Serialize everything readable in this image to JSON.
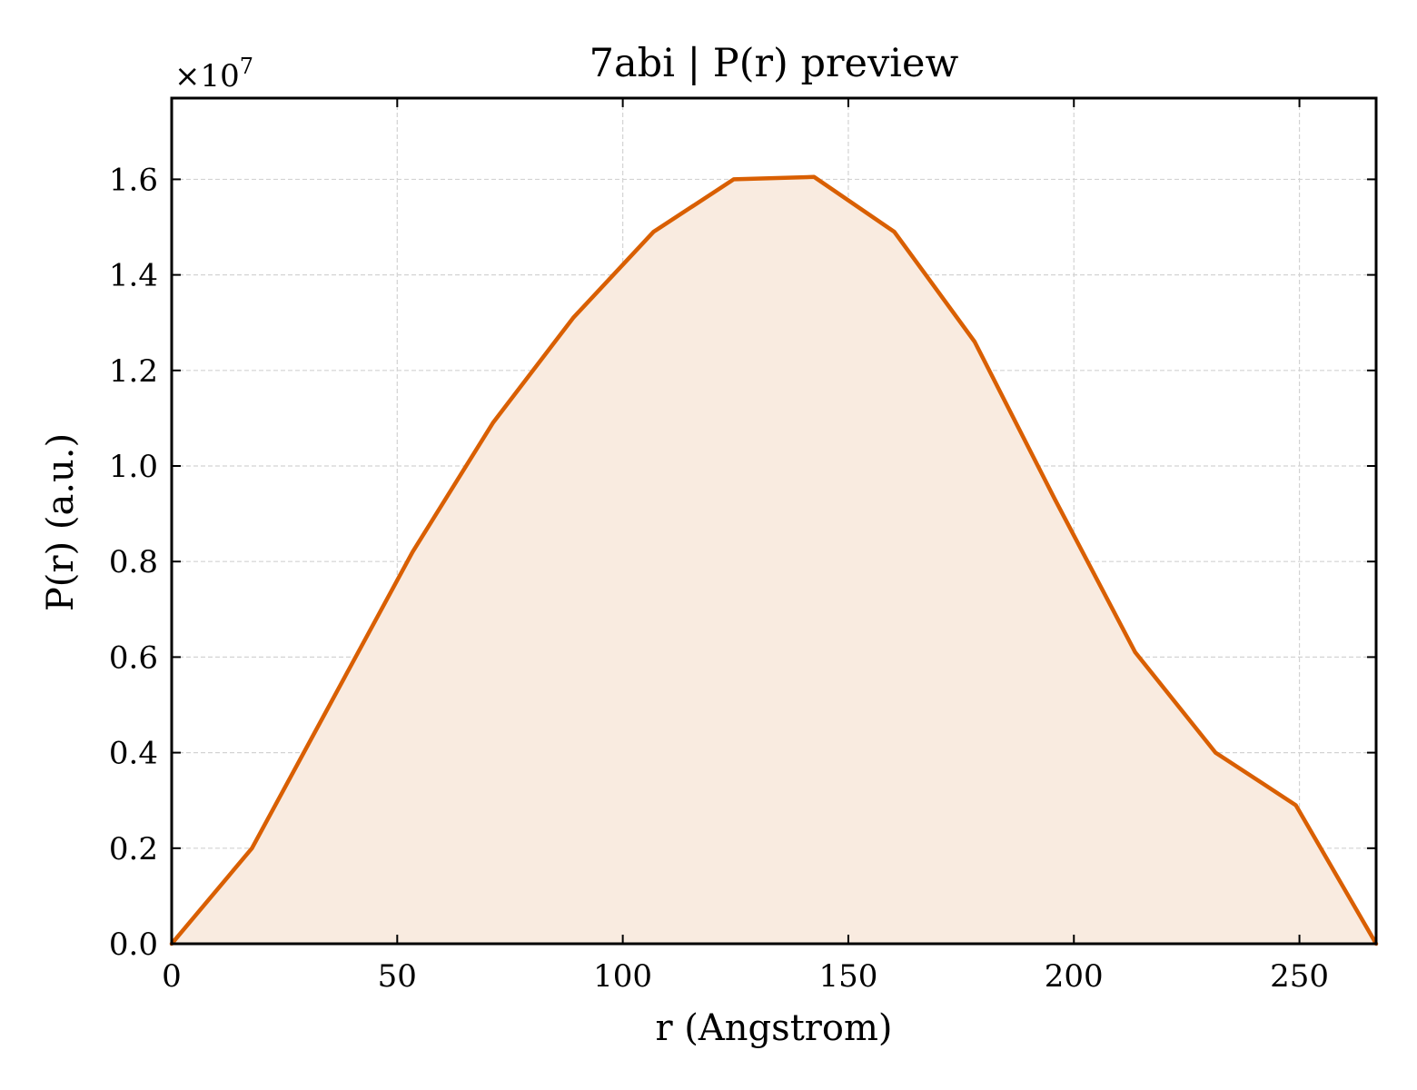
{
  "chart_data": {
    "type": "area",
    "title": "7abi | P(r) preview",
    "xlabel": "r (Angstrom)",
    "ylabel": "P(r) (a.u.)",
    "y_multiplier_label": "×10",
    "y_multiplier_exponent": "7",
    "xlim": [
      0,
      267
    ],
    "ylim": [
      0,
      1.77
    ],
    "x_ticks": [
      0,
      50,
      100,
      150,
      200,
      250
    ],
    "x_tick_labels": [
      "0",
      "50",
      "100",
      "150",
      "200",
      "250"
    ],
    "y_ticks": [
      0,
      0.2,
      0.4,
      0.6,
      0.8,
      1.0,
      1.2,
      1.4,
      1.6
    ],
    "y_tick_labels": [
      "0.0",
      "0.2",
      "0.4",
      "0.6",
      "0.8",
      "1.0",
      "1.2",
      "1.4",
      "1.6"
    ],
    "grid": true,
    "series": [
      {
        "x": [
          0,
          17.8,
          35.6,
          53.4,
          71.2,
          89.0,
          106.8,
          124.6,
          142.4,
          160.2,
          178.0,
          195.8,
          213.6,
          231.4,
          249.2,
          267.0
        ],
        "y": [
          0.0,
          0.2,
          0.51,
          0.82,
          1.09,
          1.31,
          1.49,
          1.6,
          1.605,
          1.49,
          1.26,
          0.93,
          0.61,
          0.4,
          0.29,
          0.0
        ]
      }
    ],
    "colors": {
      "line": "#d95f02",
      "fill": "#f9ebe0",
      "grid": "#d3d3d3",
      "axes": "#000000"
    }
  }
}
